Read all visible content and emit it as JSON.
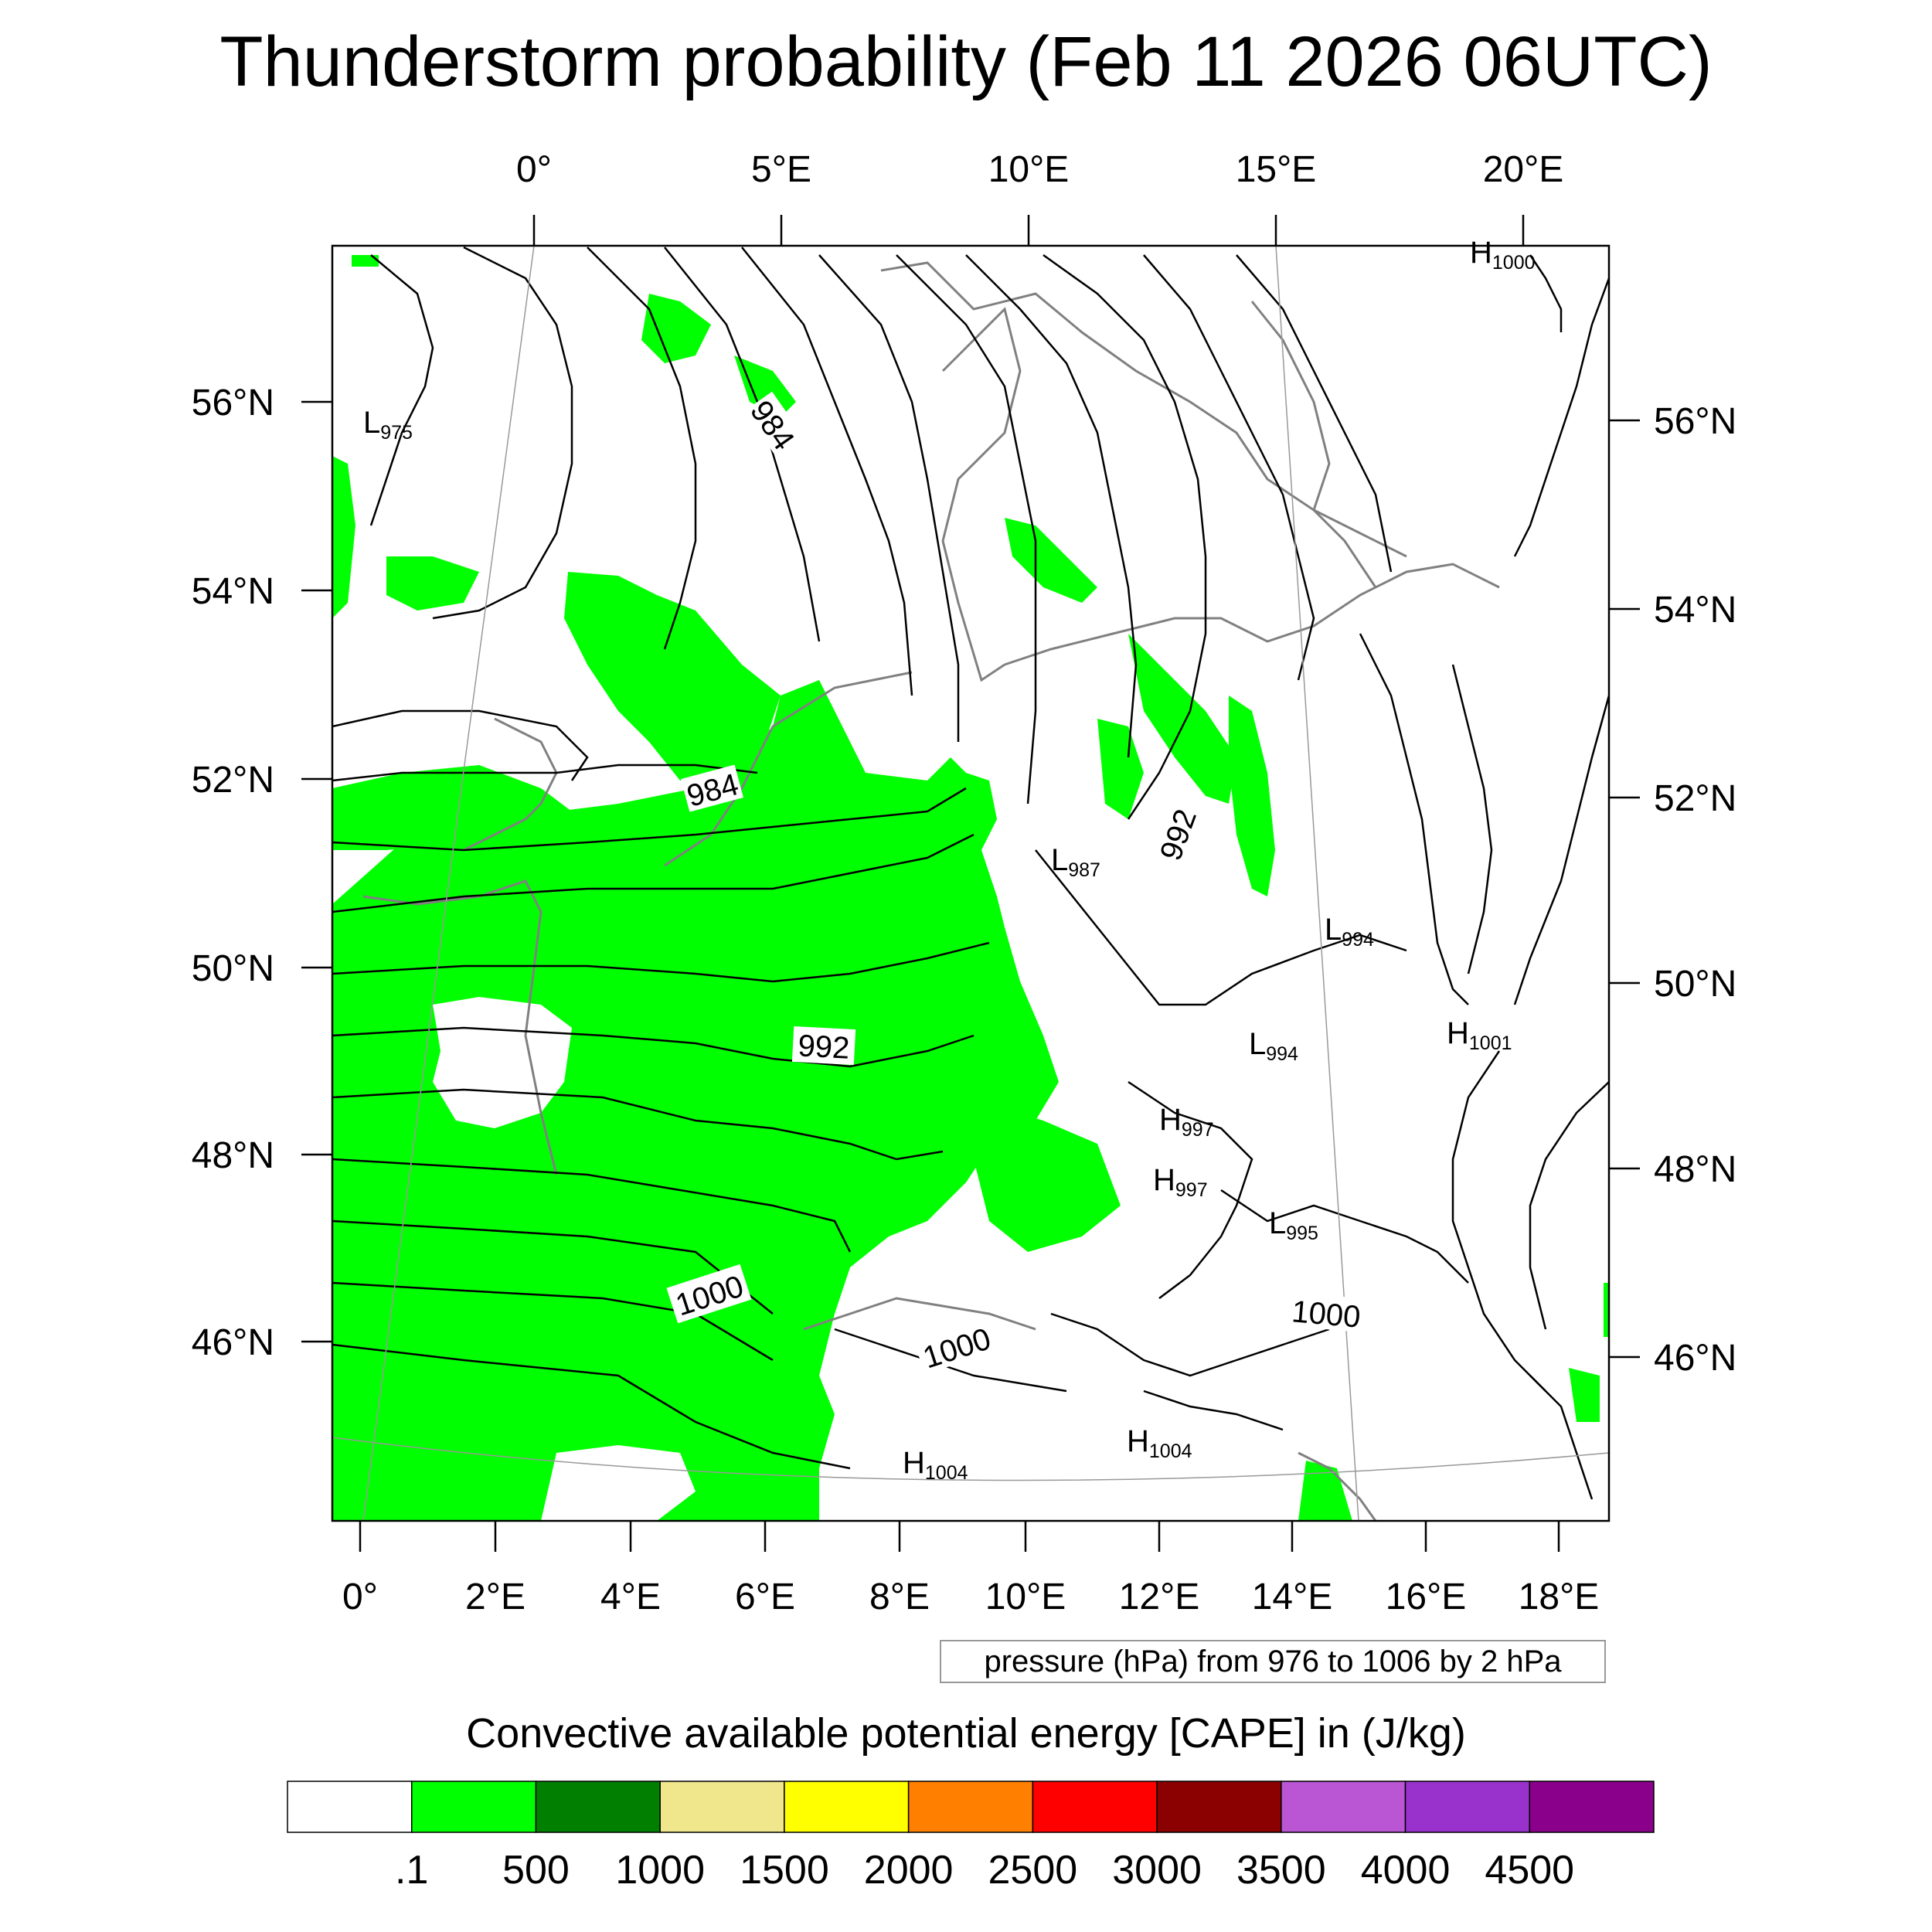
{
  "title": "Thunderstorm probability (Feb 11 2026 06UTC)",
  "map": {
    "top_lon_labels": [
      "0°",
      "5°E",
      "10°E",
      "15°E",
      "20°E"
    ],
    "bottom_lon_labels": [
      "0°",
      "2°E",
      "4°E",
      "6°E",
      "8°E",
      "10°E",
      "12°E",
      "14°E",
      "16°E",
      "18°E"
    ],
    "left_lat_labels": [
      "56°N",
      "54°N",
      "52°N",
      "50°N",
      "48°N",
      "46°N"
    ],
    "right_lat_labels": [
      "56°N",
      "54°N",
      "52°N",
      "50°N",
      "48°N",
      "46°N"
    ],
    "contour_labels": [
      "984",
      "984",
      "992",
      "992",
      "1000",
      "1000",
      "1000"
    ],
    "pressure_centers": [
      {
        "type": "L",
        "value": "975"
      },
      {
        "type": "H",
        "value": "1000"
      },
      {
        "type": "L",
        "value": "987"
      },
      {
        "type": "L",
        "value": "994"
      },
      {
        "type": "L",
        "value": "994"
      },
      {
        "type": "H",
        "value": "1001"
      },
      {
        "type": "H",
        "value": "997"
      },
      {
        "type": "H",
        "value": "997"
      },
      {
        "type": "L",
        "value": "995"
      },
      {
        "type": "H",
        "value": "1004"
      },
      {
        "type": "H",
        "value": "1004"
      }
    ],
    "cape_area_color": "#00ff00"
  },
  "info_box": "pressure (hPa) from 976 to 1006 by 2 hPa",
  "colorbar": {
    "title": "Convective available potential energy [CAPE] in (J/kg)",
    "colors": [
      "#ffffff",
      "#00ff00",
      "#007f00",
      "#f0e68c",
      "#ffff00",
      "#ff8000",
      "#ff0000",
      "#8b0000",
      "#ba55d3",
      "#9932cc",
      "#8b008b"
    ],
    "labels": [
      ".1",
      "500",
      "1000",
      "1500",
      "2000",
      "2500",
      "3000",
      "3500",
      "4000",
      "4500"
    ]
  }
}
